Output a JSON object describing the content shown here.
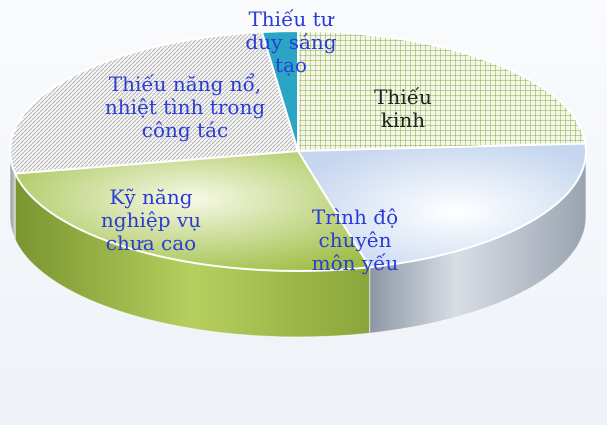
{
  "chart_data": {
    "type": "pie",
    "title": "",
    "style": "3d",
    "slices": [
      {
        "label": "Thiếu\nkinh",
        "value": 24,
        "color": "#7f9e44",
        "fill": "hatch-green",
        "label_color": "#222222"
      },
      {
        "label": "Trình độ\nchuyên\nmôn yếu",
        "value": 22,
        "color": "#c9d7ec",
        "fill": "gradient-blue",
        "label_color": "#2b3bd6"
      },
      {
        "label": "Kỹ năng\nnghiệp vụ\nchưa cao",
        "value": 26,
        "color": "#a6c44c",
        "fill": "gradient-green",
        "label_color": "#2b3bd6"
      },
      {
        "label": "Thiếu năng nổ,\nnhiệt tình trong\ncông tác",
        "value": 26,
        "color": "#d8d8d8",
        "fill": "hatch-gray",
        "label_color": "#2b3bd6"
      },
      {
        "label": "Thiếu tư\nduy sáng\ntạo",
        "value": 2,
        "color": "#2aa6c4",
        "fill": "solid-teal",
        "label_color": "#2b3bd6"
      }
    ]
  }
}
